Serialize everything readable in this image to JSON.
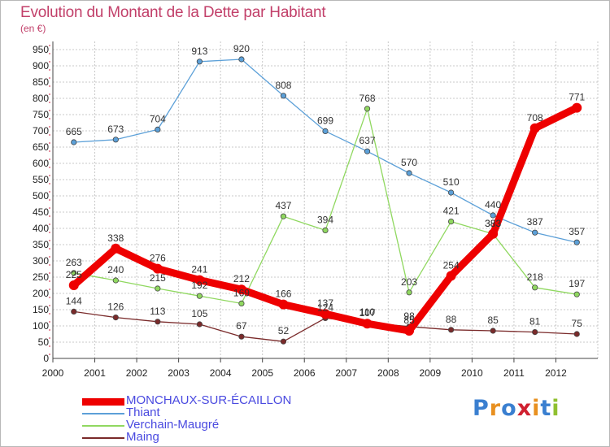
{
  "title": "Evolution du Montant de la Dette par Habitant",
  "unit": "(en €)",
  "logo": "Proxiti",
  "colors": {
    "title": "#c2406a",
    "grid": "#c8c8c8",
    "axis_marks": "#d02040"
  },
  "chart_data": {
    "type": "line",
    "title": "Evolution du Montant de la Dette par Habitant",
    "subtitle": "(en €)",
    "xlabel": "",
    "ylabel": "",
    "ylim": [
      0,
      950
    ],
    "yticks": [
      0,
      50,
      100,
      150,
      200,
      250,
      300,
      350,
      400,
      450,
      500,
      550,
      600,
      650,
      700,
      750,
      800,
      850,
      900,
      950
    ],
    "grid": true,
    "legend": "bottom-left",
    "x": [
      "2000",
      "2001",
      "2002",
      "2003",
      "2004",
      "2005",
      "2006",
      "2007",
      "2008",
      "2009",
      "2010",
      "2011",
      "2012"
    ],
    "series": [
      {
        "name": "MONCHAUX-SUR-ÉCAILLON",
        "color": "#ee0000",
        "values": [
          225,
          338,
          276,
          241,
          212,
          166,
          137,
          107,
          85,
          254,
          383,
          708,
          771
        ]
      },
      {
        "name": "Thiant",
        "color": "#5ca0d8",
        "values": [
          665,
          673,
          704,
          913,
          920,
          808,
          699,
          637,
          570,
          510,
          440,
          387,
          357
        ]
      },
      {
        "name": "Verchain-Maugré",
        "color": "#90d860",
        "values": [
          263,
          240,
          215,
          192,
          169,
          437,
          394,
          768,
          203,
          421,
          383,
          218,
          197
        ]
      },
      {
        "name": "Maing",
        "color": "#7a2a2a",
        "values": [
          144,
          126,
          113,
          105,
          67,
          52,
          124,
          110,
          98,
          88,
          85,
          81,
          75
        ]
      }
    ]
  },
  "legend_colors": {
    "MONCHAUX-SUR-ÉCAILLON": "#4a4ae0",
    "Thiant": "#4a4ae0",
    "Verchain-Maugré": "#4a4ae0",
    "Maing": "#4a4ae0"
  }
}
